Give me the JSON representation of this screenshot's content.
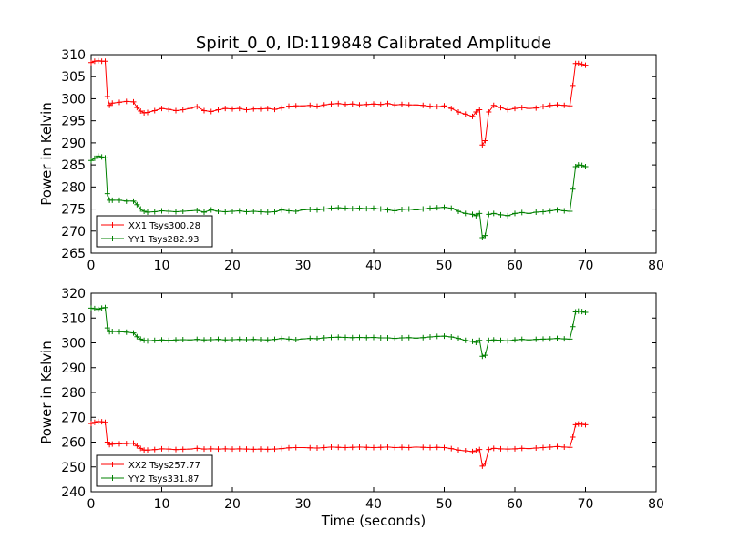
{
  "chart_data": [
    {
      "type": "line",
      "title": "Spirit_0_0, ID:119848 Calibrated Amplitude",
      "xlabel": "",
      "ylabel": "Power in Kelvin",
      "xlim": [
        0,
        80
      ],
      "ylim": [
        265,
        310
      ],
      "xticks": [
        "0",
        "10",
        "20",
        "30",
        "40",
        "50",
        "60",
        "70",
        "80"
      ],
      "yticks": [
        "265",
        "270",
        "275",
        "280",
        "285",
        "290",
        "295",
        "300",
        "305",
        "310"
      ],
      "grid": false,
      "legend_position": "lower-left",
      "marker": "+",
      "series": [
        {
          "name": "XX1 Tsys300.28",
          "color": "#ff0000",
          "x": [
            0,
            0.5,
            1,
            1.5,
            2,
            2.3,
            2.6,
            3,
            4,
            5,
            6,
            6.5,
            7,
            7.5,
            8,
            9,
            10,
            11,
            12,
            13,
            14,
            15,
            16,
            17,
            18,
            19,
            20,
            21,
            22,
            23,
            24,
            25,
            26,
            27,
            28,
            29,
            30,
            31,
            32,
            33,
            34,
            35,
            36,
            37,
            38,
            39,
            40,
            41,
            42,
            43,
            44,
            45,
            46,
            47,
            48,
            49,
            50,
            51,
            52,
            53,
            54,
            54.5,
            55,
            55.4,
            55.8,
            56.3,
            57,
            58,
            59,
            60,
            61,
            62,
            63,
            64,
            65,
            66,
            67,
            67.8,
            68.2,
            68.6,
            69,
            69.5,
            70
          ],
          "y": [
            308.2,
            308.5,
            308.6,
            308.5,
            308.5,
            300.5,
            298.5,
            299,
            299.2,
            299.4,
            299.3,
            298,
            297.2,
            296.8,
            296.9,
            297.3,
            297.8,
            297.6,
            297.3,
            297.5,
            297.8,
            298.2,
            297.3,
            297.1,
            297.5,
            297.8,
            297.7,
            297.8,
            297.5,
            297.7,
            297.7,
            297.8,
            297.6,
            297.9,
            298.3,
            298.4,
            298.4,
            298.5,
            298.3,
            298.6,
            298.8,
            298.9,
            298.7,
            298.8,
            298.6,
            298.7,
            298.8,
            298.7,
            298.9,
            298.6,
            298.7,
            298.6,
            298.6,
            298.5,
            298.3,
            298.2,
            298.4,
            297.8,
            297,
            296.5,
            296,
            297,
            297.5,
            289.5,
            290.5,
            297,
            298.5,
            298,
            297.5,
            297.8,
            298,
            297.8,
            297.9,
            298.2,
            298.5,
            298.6,
            298.5,
            298.4,
            303,
            308,
            308,
            307.8,
            307.6
          ]
        },
        {
          "name": "YY1 Tsys282.93",
          "color": "#008000",
          "x": [
            0,
            0.5,
            1,
            1.5,
            2,
            2.3,
            2.6,
            3,
            4,
            5,
            6,
            6.5,
            7,
            7.5,
            8,
            9,
            10,
            11,
            12,
            13,
            14,
            15,
            16,
            17,
            18,
            19,
            20,
            21,
            22,
            23,
            24,
            25,
            26,
            27,
            28,
            29,
            30,
            31,
            32,
            33,
            34,
            35,
            36,
            37,
            38,
            39,
            40,
            41,
            42,
            43,
            44,
            45,
            46,
            47,
            48,
            49,
            50,
            51,
            52,
            53,
            54,
            54.5,
            55,
            55.4,
            55.8,
            56.3,
            57,
            58,
            59,
            60,
            61,
            62,
            63,
            64,
            65,
            66,
            67,
            67.8,
            68.2,
            68.6,
            69,
            69.5,
            70
          ],
          "y": [
            286,
            286.5,
            287,
            286.8,
            286.6,
            278.5,
            277,
            277,
            277,
            276.8,
            276.8,
            276,
            275,
            274.5,
            274.3,
            274.4,
            274.6,
            274.5,
            274.4,
            274.5,
            274.6,
            274.7,
            274.3,
            274.8,
            274.5,
            274.4,
            274.5,
            274.6,
            274.4,
            274.5,
            274.4,
            274.3,
            274.4,
            274.8,
            274.6,
            274.5,
            274.8,
            274.9,
            274.8,
            275,
            275.2,
            275.3,
            275.2,
            275.1,
            275.2,
            275.1,
            275.2,
            275,
            274.8,
            274.6,
            274.9,
            275,
            274.8,
            275,
            275.2,
            275.3,
            275.4,
            275.2,
            274.5,
            274,
            273.8,
            273.5,
            274,
            268.5,
            269,
            273.8,
            274,
            273.7,
            273.5,
            274,
            274.2,
            274,
            274.3,
            274.4,
            274.6,
            274.8,
            274.6,
            274.5,
            279.5,
            284.6,
            285,
            284.9,
            284.6
          ]
        }
      ]
    },
    {
      "type": "line",
      "title": "",
      "xlabel": "Time (seconds)",
      "ylabel": "Power in Kelvin",
      "xlim": [
        0,
        80
      ],
      "ylim": [
        240,
        320
      ],
      "xticks": [
        "0",
        "10",
        "20",
        "30",
        "40",
        "50",
        "60",
        "70",
        "80"
      ],
      "yticks": [
        "240",
        "250",
        "260",
        "270",
        "280",
        "290",
        "300",
        "310",
        "320"
      ],
      "grid": false,
      "legend_position": "lower-left",
      "marker": "+",
      "series": [
        {
          "name": "XX2 Tsys257.77",
          "color": "#ff0000",
          "x": [
            0,
            0.5,
            1,
            1.5,
            2,
            2.3,
            2.6,
            3,
            4,
            5,
            6,
            6.5,
            7,
            7.5,
            8,
            9,
            10,
            11,
            12,
            13,
            14,
            15,
            16,
            17,
            18,
            19,
            20,
            21,
            22,
            23,
            24,
            25,
            26,
            27,
            28,
            29,
            30,
            31,
            32,
            33,
            34,
            35,
            36,
            37,
            38,
            39,
            40,
            41,
            42,
            43,
            44,
            45,
            46,
            47,
            48,
            49,
            50,
            51,
            52,
            53,
            54,
            54.5,
            55,
            55.4,
            55.8,
            56.3,
            57,
            58,
            59,
            60,
            61,
            62,
            63,
            64,
            65,
            66,
            67,
            67.8,
            68.2,
            68.6,
            69,
            69.5,
            70
          ],
          "y": [
            267.5,
            268,
            268.3,
            268.2,
            268,
            260,
            259,
            259.2,
            259.3,
            259.4,
            259.6,
            258.5,
            257.5,
            256.8,
            256.8,
            257,
            257.3,
            257.2,
            257,
            257.1,
            257.2,
            257.5,
            257.2,
            257.3,
            257.2,
            257.3,
            257.2,
            257.3,
            257.2,
            257.1,
            257.2,
            257.1,
            257.2,
            257.4,
            257.7,
            257.8,
            257.8,
            257.7,
            257.6,
            257.8,
            258,
            257.9,
            257.8,
            257.9,
            258,
            257.9,
            257.8,
            257.9,
            258,
            257.8,
            257.9,
            257.8,
            258,
            257.9,
            257.8,
            257.9,
            257.8,
            257.4,
            256.8,
            256.5,
            256.2,
            256.5,
            257,
            250.3,
            251.5,
            257,
            257.5,
            257.3,
            257.2,
            257.3,
            257.5,
            257.4,
            257.6,
            257.8,
            258,
            258.2,
            258,
            257.9,
            262,
            267,
            267.3,
            267.2,
            267
          ]
        },
        {
          "name": "YY2 Tsys331.87",
          "color": "#008000",
          "x": [
            0,
            0.5,
            1,
            1.5,
            2,
            2.3,
            2.6,
            3,
            4,
            5,
            6,
            6.5,
            7,
            7.5,
            8,
            9,
            10,
            11,
            12,
            13,
            14,
            15,
            16,
            17,
            18,
            19,
            20,
            21,
            22,
            23,
            24,
            25,
            26,
            27,
            28,
            29,
            30,
            31,
            32,
            33,
            34,
            35,
            36,
            37,
            38,
            39,
            40,
            41,
            42,
            43,
            44,
            45,
            46,
            47,
            48,
            49,
            50,
            51,
            52,
            53,
            54,
            54.5,
            55,
            55.4,
            55.8,
            56.3,
            57,
            58,
            59,
            60,
            61,
            62,
            63,
            64,
            65,
            66,
            67,
            67.8,
            68.2,
            68.6,
            69,
            69.5,
            70
          ],
          "y": [
            314,
            313.8,
            313.5,
            314,
            314.2,
            306,
            304.5,
            304.6,
            304.5,
            304.3,
            304,
            302.5,
            301.5,
            301,
            300.8,
            301,
            301.2,
            301,
            301.2,
            301.3,
            301.2,
            301.4,
            301.2,
            301.3,
            301.4,
            301.2,
            301.3,
            301.4,
            301.3,
            301.4,
            301.3,
            301.2,
            301.4,
            301.8,
            301.5,
            301.3,
            301.6,
            301.8,
            301.7,
            302,
            302.2,
            302.3,
            302.2,
            302.1,
            302.2,
            302.1,
            302.2,
            302,
            302,
            301.8,
            302,
            302.1,
            301.9,
            302.1,
            302.4,
            302.6,
            302.7,
            302.4,
            301.8,
            301,
            300.6,
            300.2,
            301,
            294.6,
            295,
            301,
            301.2,
            301,
            300.8,
            301.2,
            301.4,
            301.2,
            301.4,
            301.5,
            301.6,
            301.8,
            301.6,
            301.5,
            306.5,
            312.5,
            312.8,
            312.6,
            312.3
          ]
        }
      ]
    }
  ]
}
